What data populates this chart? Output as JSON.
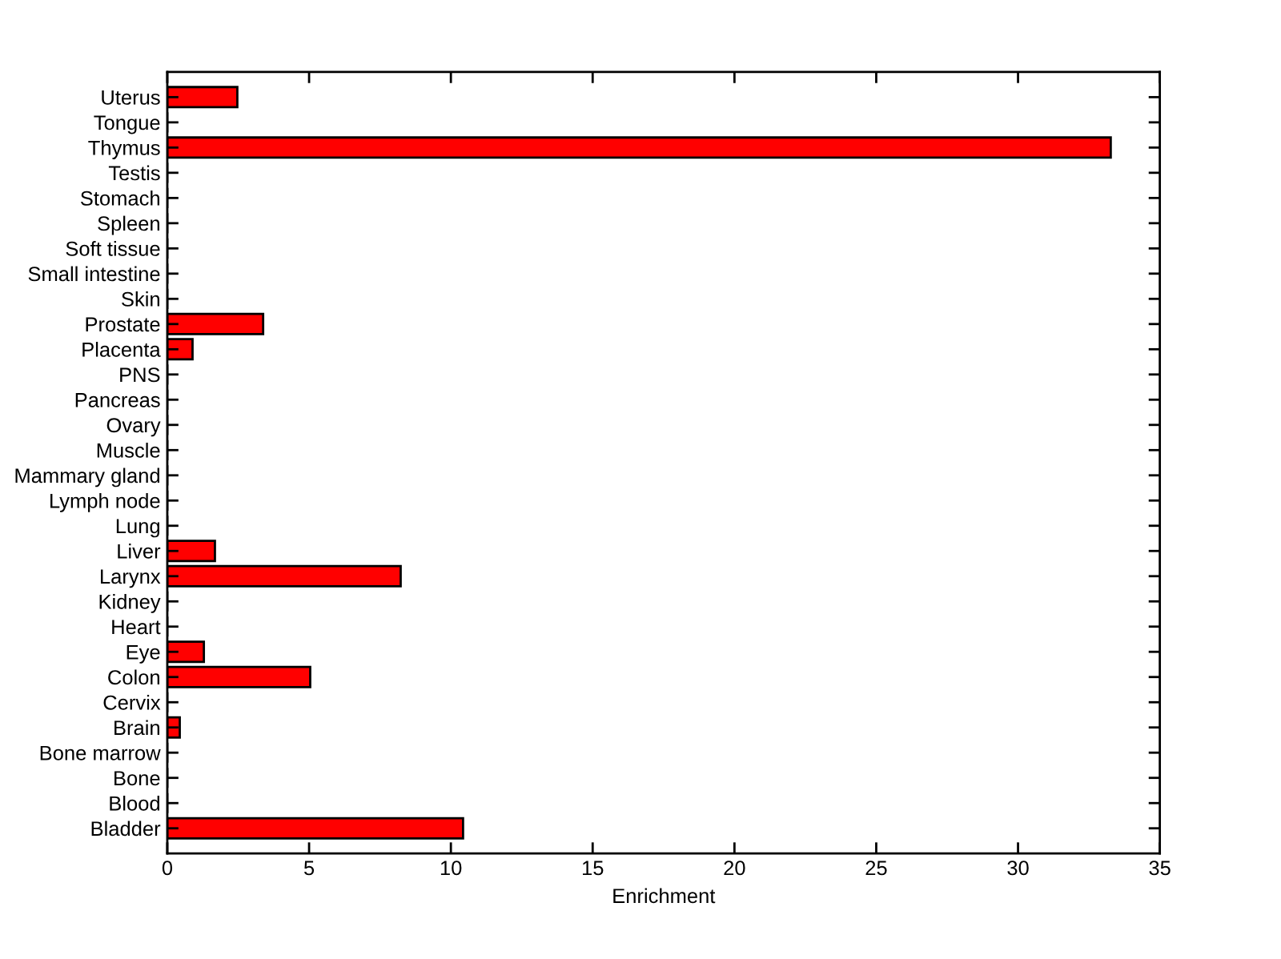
{
  "chart_data": {
    "type": "bar",
    "orientation": "horizontal",
    "xlabel": "Enrichment",
    "categories": [
      "Uterus",
      "Tongue",
      "Thymus",
      "Testis",
      "Stomach",
      "Spleen",
      "Soft tissue",
      "Small intestine",
      "Skin",
      "Prostate",
      "Placenta",
      "PNS",
      "Pancreas",
      "Ovary",
      "Muscle",
      "Mammary gland",
      "Lymph node",
      "Lung",
      "Liver",
      "Larynx",
      "Kidney",
      "Heart",
      "Eye",
      "Colon",
      "Cervix",
      "Brain",
      "Bone marrow",
      "Bone",
      "Blood",
      "Bladder"
    ],
    "values": [
      2.47,
      0,
      33.27,
      0,
      0,
      0,
      0,
      0,
      0,
      3.38,
      0.89,
      0,
      0,
      0,
      0,
      0,
      0,
      0,
      1.68,
      8.23,
      0,
      0,
      1.29,
      5.04,
      0,
      0.44,
      0,
      0,
      0,
      10.43
    ],
    "color": "#ff0000",
    "xlim": [
      0,
      35
    ],
    "xticks": [
      0,
      5,
      10,
      15,
      20,
      25,
      30,
      35
    ],
    "grid": false
  }
}
